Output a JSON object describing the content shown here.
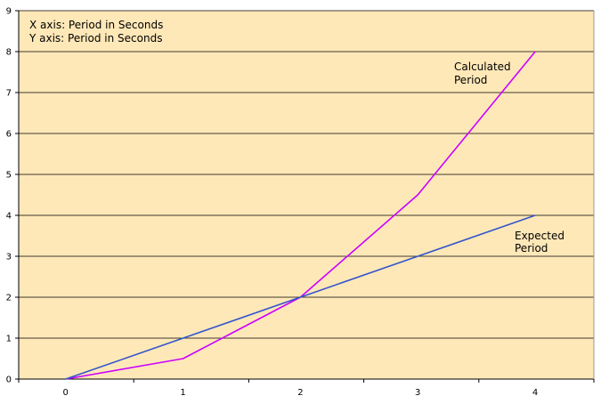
{
  "chart_data": {
    "type": "line",
    "annotations": [
      "X axis: Period in Seconds",
      "Y axis: Period in Seconds"
    ],
    "x": [
      0,
      1,
      2,
      3,
      4
    ],
    "xlim": [
      -0.4,
      4.5
    ],
    "ylim": [
      0,
      9
    ],
    "x_ticks": [
      "0",
      "1",
      "2",
      "3",
      "4"
    ],
    "y_ticks": [
      "0",
      "1",
      "2",
      "3",
      "4",
      "5",
      "6",
      "7",
      "8",
      "9"
    ],
    "grid": "horizontal",
    "series": [
      {
        "name_lines": [
          "Calculated",
          "Period"
        ],
        "values": [
          0,
          0.5,
          2,
          4.5,
          8
        ],
        "color": "#cc00ff"
      },
      {
        "name_lines": [
          "Expected",
          "Period"
        ],
        "values": [
          0,
          1,
          2,
          3,
          4
        ],
        "color": "#3355cc"
      }
    ],
    "colors": {
      "plot_background": "#ffe8b8",
      "gridline": "#000000",
      "axis": "#000000"
    }
  }
}
